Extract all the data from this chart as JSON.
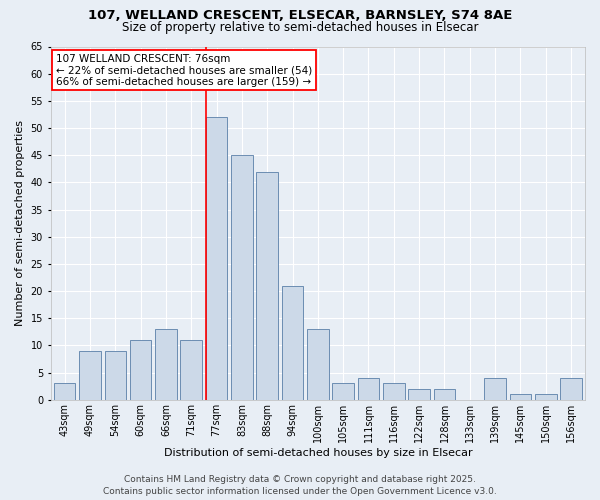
{
  "title_line1": "107, WELLAND CRESCENT, ELSECAR, BARNSLEY, S74 8AE",
  "title_line2": "Size of property relative to semi-detached houses in Elsecar",
  "xlabel": "Distribution of semi-detached houses by size in Elsecar",
  "ylabel": "Number of semi-detached properties",
  "categories": [
    "43sqm",
    "49sqm",
    "54sqm",
    "60sqm",
    "66sqm",
    "71sqm",
    "77sqm",
    "83sqm",
    "88sqm",
    "94sqm",
    "100sqm",
    "105sqm",
    "111sqm",
    "116sqm",
    "122sqm",
    "128sqm",
    "133sqm",
    "139sqm",
    "145sqm",
    "150sqm",
    "156sqm"
  ],
  "values": [
    3,
    9,
    9,
    11,
    13,
    11,
    52,
    45,
    42,
    21,
    13,
    3,
    4,
    3,
    2,
    2,
    0,
    4,
    1,
    1,
    4
  ],
  "bar_color": "#ccd9e8",
  "bar_edge_color": "#5a7fa8",
  "annotation_text_line1": "107 WELLAND CRESCENT: 76sqm",
  "annotation_text_line2": "← 22% of semi-detached houses are smaller (54)",
  "annotation_text_line3": "66% of semi-detached houses are larger (159) →",
  "red_line_index": 6,
  "ylim": [
    0,
    65
  ],
  "footer_line1": "Contains HM Land Registry data © Crown copyright and database right 2025.",
  "footer_line2": "Contains public sector information licensed under the Open Government Licence v3.0.",
  "bg_color": "#e8eef5",
  "grid_color": "#ffffff",
  "title_fontsize": 9.5,
  "subtitle_fontsize": 8.5,
  "tick_fontsize": 7,
  "axis_label_fontsize": 8,
  "annotation_fontsize": 7.5,
  "footer_fontsize": 6.5
}
